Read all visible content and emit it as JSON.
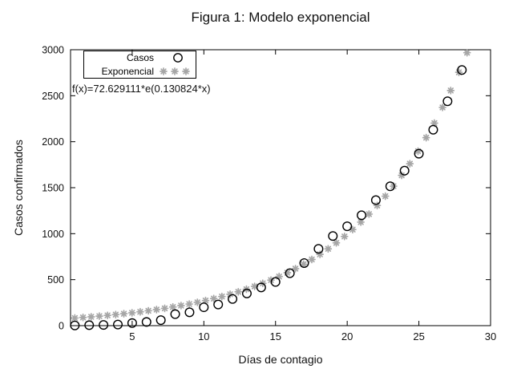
{
  "window": {
    "background": "#ffffff"
  },
  "chart_data": {
    "type": "scatter",
    "title": "Figura 1: Modelo exponencial",
    "xlabel": "Días de contagio",
    "ylabel": "Casos confirmados",
    "xlim": [
      0.7,
      30
    ],
    "ylim": [
      0,
      3000
    ],
    "x_ticks": [
      5,
      10,
      15,
      20,
      25,
      30
    ],
    "y_ticks": [
      0,
      500,
      1000,
      1500,
      2000,
      2500,
      3000
    ],
    "grid": false,
    "legend_position": "top-left",
    "annotation": "f(x)=72.629111*e(0.130824*x)",
    "colors": {
      "casos": "#000000",
      "exponencial": "#a6a6a6",
      "axis": "#000000"
    },
    "legend": [
      {
        "label": "Casos",
        "marker": "open-circle"
      },
      {
        "label": "Exponencial",
        "marker": "asterisk"
      }
    ],
    "series": [
      {
        "name": "Casos",
        "type": "scatter",
        "marker": "open-circle",
        "x": [
          1,
          2,
          3,
          4,
          5,
          6,
          7,
          8,
          9,
          10,
          11,
          12,
          13,
          14,
          15,
          16,
          17,
          18,
          19,
          20,
          21,
          22,
          23,
          24,
          25,
          26,
          27,
          28
        ],
        "y": [
          2,
          5,
          8,
          12,
          28,
          40,
          60,
          125,
          145,
          200,
          230,
          290,
          350,
          415,
          475,
          570,
          680,
          835,
          975,
          1080,
          1200,
          1365,
          1515,
          1685,
          1870,
          2130,
          2440,
          2780
        ]
      },
      {
        "name": "Exponencial",
        "type": "function",
        "marker": "asterisk",
        "formula": "f(x)=72.629111*e(0.130824*x)",
        "a": 72.629111,
        "b": 0.130824,
        "x_start": 1,
        "x_end": 28.36,
        "samples": 49
      }
    ]
  }
}
